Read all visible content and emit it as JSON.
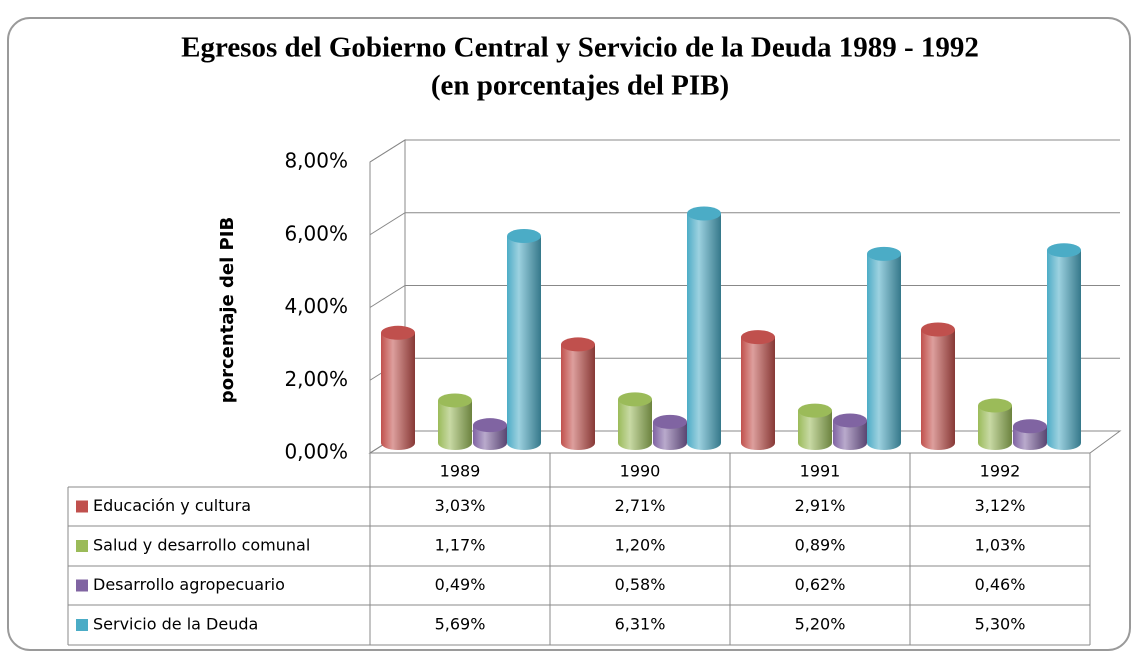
{
  "chart_data": {
    "type": "bar",
    "title": [
      "Egresos del Gobierno Central y Servicio de la Deuda 1989 - 1992",
      "(en porcentajes del PIB)"
    ],
    "y_label": "porcentaje del PIB",
    "categories": [
      "1989",
      "1990",
      "1991",
      "1992"
    ],
    "series": [
      {
        "name": "Educación y cultura",
        "color": "#c0504d",
        "values": [
          3.03,
          2.71,
          2.91,
          3.12
        ],
        "value_labels": [
          "3,03%",
          "2,71%",
          "2,91%",
          "3,12%"
        ]
      },
      {
        "name": "Salud y desarrollo comunal",
        "color": "#9bbb59",
        "values": [
          1.17,
          1.2,
          0.89,
          1.03
        ],
        "value_labels": [
          "1,17%",
          "1,20%",
          "0,89%",
          "1,03%"
        ]
      },
      {
        "name": "Desarrollo agropecuario",
        "color": "#8064a2",
        "values": [
          0.49,
          0.58,
          0.62,
          0.46
        ],
        "value_labels": [
          "0,49%",
          "0,58%",
          "0,62%",
          "0,46%"
        ]
      },
      {
        "name": "Servicio de la Deuda",
        "color": "#4bacc6",
        "values": [
          5.69,
          6.31,
          5.2,
          5.3
        ],
        "value_labels": [
          "5,69%",
          "6,31%",
          "5,20%",
          "5,30%"
        ]
      }
    ],
    "ylim": [
      0,
      8
    ],
    "yticks": [
      {
        "value": 0,
        "label": "0,00%"
      },
      {
        "value": 2,
        "label": "2,00%"
      },
      {
        "value": 4,
        "label": "4,00%"
      },
      {
        "value": 6,
        "label": "6,00%"
      },
      {
        "value": 8,
        "label": "8,00%"
      }
    ],
    "grid": true
  }
}
